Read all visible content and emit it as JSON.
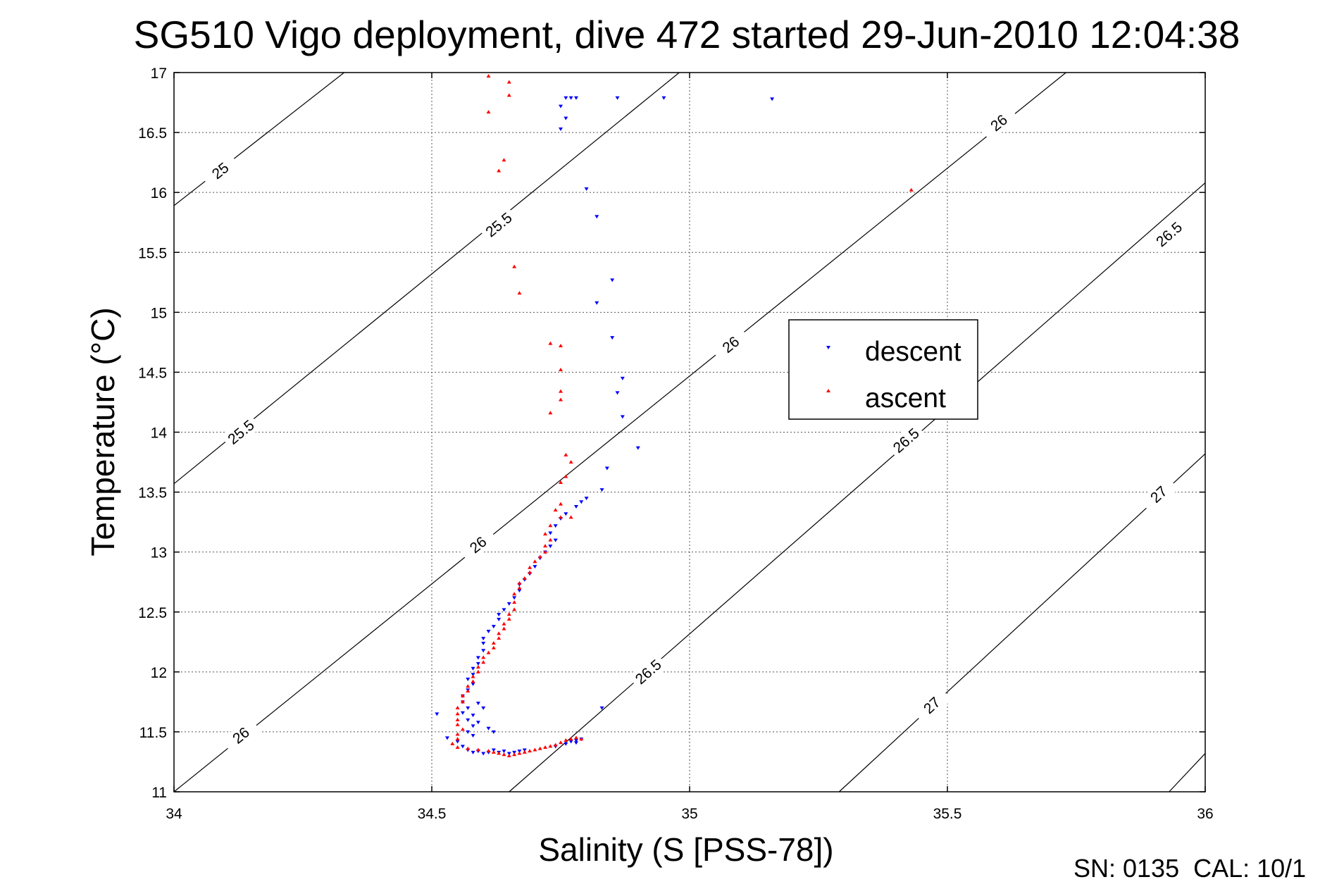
{
  "chart_data": {
    "type": "scatter",
    "title": "SG510 Vigo deployment, dive 472 started 29-Jun-2010 12:04:38",
    "xlabel": "Salinity (S [PSS-78])",
    "ylabel": "Temperature (°C)",
    "xlim": [
      34,
      36
    ],
    "ylim": [
      11,
      17
    ],
    "xticks": [
      "34",
      "34.5",
      "35",
      "35.5",
      "36"
    ],
    "yticks": [
      "11",
      "11.5",
      "12",
      "12.5",
      "13",
      "13.5",
      "14",
      "14.5",
      "15",
      "15.5",
      "16",
      "16.5",
      "17"
    ],
    "grid": true,
    "legend_position": "upper-right-center",
    "footer": "SN: 0135  CAL: 10/1",
    "series": [
      {
        "name": "descent",
        "color": "#0000ff",
        "marker": "triangle-down",
        "points": [
          [
            34.76,
            16.79
          ],
          [
            34.77,
            16.79
          ],
          [
            34.78,
            16.79
          ],
          [
            34.86,
            16.79
          ],
          [
            34.95,
            16.79
          ],
          [
            35.16,
            16.78
          ],
          [
            34.75,
            16.72
          ],
          [
            34.76,
            16.62
          ],
          [
            34.75,
            16.53
          ],
          [
            34.8,
            16.03
          ],
          [
            34.82,
            15.8
          ],
          [
            34.85,
            15.27
          ],
          [
            34.82,
            15.08
          ],
          [
            34.85,
            14.79
          ],
          [
            34.87,
            14.45
          ],
          [
            34.86,
            14.33
          ],
          [
            34.87,
            14.13
          ],
          [
            34.9,
            13.87
          ],
          [
            34.84,
            13.7
          ],
          [
            34.83,
            13.52
          ],
          [
            34.8,
            13.45
          ],
          [
            34.79,
            13.42
          ],
          [
            34.78,
            13.38
          ],
          [
            34.76,
            13.32
          ],
          [
            34.75,
            13.28
          ],
          [
            34.74,
            13.22
          ],
          [
            34.73,
            13.16
          ],
          [
            34.74,
            13.1
          ],
          [
            34.73,
            13.05
          ],
          [
            34.72,
            13.0
          ],
          [
            34.71,
            12.95
          ],
          [
            34.7,
            12.88
          ],
          [
            34.69,
            12.82
          ],
          [
            34.68,
            12.77
          ],
          [
            34.67,
            12.73
          ],
          [
            34.67,
            12.68
          ],
          [
            34.66,
            12.62
          ],
          [
            34.65,
            12.57
          ],
          [
            34.64,
            12.52
          ],
          [
            34.63,
            12.48
          ],
          [
            34.63,
            12.44
          ],
          [
            34.62,
            12.38
          ],
          [
            34.61,
            12.34
          ],
          [
            34.6,
            12.28
          ],
          [
            34.6,
            12.24
          ],
          [
            34.6,
            12.18
          ],
          [
            34.59,
            12.12
          ],
          [
            34.59,
            12.07
          ],
          [
            34.58,
            12.03
          ],
          [
            34.58,
            11.98
          ],
          [
            34.57,
            11.94
          ],
          [
            34.58,
            11.9
          ],
          [
            34.57,
            11.85
          ],
          [
            34.56,
            11.8
          ],
          [
            34.56,
            11.75
          ],
          [
            34.57,
            11.7
          ],
          [
            34.56,
            11.66
          ],
          [
            34.57,
            11.6
          ],
          [
            34.58,
            11.55
          ],
          [
            34.57,
            11.5
          ],
          [
            34.58,
            11.47
          ],
          [
            34.59,
            11.74
          ],
          [
            34.6,
            11.7
          ],
          [
            34.58,
            11.64
          ],
          [
            34.59,
            11.58
          ],
          [
            34.61,
            11.53
          ],
          [
            34.62,
            11.5
          ],
          [
            34.51,
            11.65
          ],
          [
            34.53,
            11.45
          ],
          [
            34.55,
            11.42
          ],
          [
            34.56,
            11.38
          ],
          [
            34.57,
            11.35
          ],
          [
            34.58,
            11.33
          ],
          [
            34.59,
            11.34
          ],
          [
            34.6,
            11.32
          ],
          [
            34.61,
            11.33
          ],
          [
            34.62,
            11.35
          ],
          [
            34.63,
            11.33
          ],
          [
            34.64,
            11.34
          ],
          [
            34.65,
            11.32
          ],
          [
            34.66,
            11.33
          ],
          [
            34.67,
            11.34
          ],
          [
            34.68,
            11.35
          ],
          [
            34.74,
            11.38
          ],
          [
            34.76,
            11.4
          ],
          [
            34.77,
            11.42
          ],
          [
            34.78,
            11.43
          ],
          [
            34.79,
            11.44
          ],
          [
            34.78,
            11.41
          ],
          [
            34.83,
            11.7
          ]
        ]
      },
      {
        "name": "ascent",
        "color": "#ff0000",
        "marker": "triangle-up",
        "points": [
          [
            34.61,
            16.97
          ],
          [
            34.65,
            16.92
          ],
          [
            34.61,
            16.67
          ],
          [
            34.65,
            16.81
          ],
          [
            34.64,
            16.27
          ],
          [
            34.63,
            16.18
          ],
          [
            34.66,
            15.38
          ],
          [
            34.67,
            15.16
          ],
          [
            34.73,
            14.74
          ],
          [
            34.75,
            14.72
          ],
          [
            34.75,
            14.52
          ],
          [
            34.75,
            14.34
          ],
          [
            34.75,
            14.27
          ],
          [
            34.73,
            14.16
          ],
          [
            34.76,
            13.81
          ],
          [
            34.77,
            13.75
          ],
          [
            34.76,
            13.63
          ],
          [
            34.75,
            13.58
          ],
          [
            34.75,
            13.4
          ],
          [
            34.74,
            13.35
          ],
          [
            34.75,
            13.29
          ],
          [
            34.77,
            13.29
          ],
          [
            34.73,
            13.22
          ],
          [
            34.72,
            13.15
          ],
          [
            34.73,
            13.1
          ],
          [
            34.72,
            13.05
          ],
          [
            34.72,
            13.0
          ],
          [
            34.71,
            12.96
          ],
          [
            34.7,
            12.92
          ],
          [
            34.69,
            12.87
          ],
          [
            34.69,
            12.83
          ],
          [
            34.68,
            12.78
          ],
          [
            34.67,
            12.74
          ],
          [
            34.67,
            12.7
          ],
          [
            34.66,
            12.65
          ],
          [
            34.66,
            12.58
          ],
          [
            34.66,
            12.52
          ],
          [
            34.65,
            12.48
          ],
          [
            34.65,
            12.44
          ],
          [
            34.64,
            12.4
          ],
          [
            34.64,
            12.36
          ],
          [
            34.63,
            12.32
          ],
          [
            34.63,
            12.28
          ],
          [
            34.62,
            12.24
          ],
          [
            34.62,
            12.2
          ],
          [
            34.61,
            12.16
          ],
          [
            34.6,
            12.12
          ],
          [
            34.6,
            12.08
          ],
          [
            34.59,
            12.04
          ],
          [
            34.59,
            12.0
          ],
          [
            34.58,
            11.96
          ],
          [
            34.58,
            11.92
          ],
          [
            34.57,
            11.88
          ],
          [
            34.57,
            11.84
          ],
          [
            34.56,
            11.8
          ],
          [
            34.56,
            11.75
          ],
          [
            34.55,
            11.7
          ],
          [
            34.55,
            11.65
          ],
          [
            34.55,
            11.6
          ],
          [
            34.55,
            11.56
          ],
          [
            34.56,
            11.52
          ],
          [
            34.55,
            11.48
          ],
          [
            34.55,
            11.44
          ],
          [
            34.54,
            11.4
          ],
          [
            34.55,
            11.37
          ],
          [
            34.57,
            11.36
          ],
          [
            34.59,
            11.35
          ],
          [
            34.61,
            11.34
          ],
          [
            34.62,
            11.33
          ],
          [
            34.63,
            11.32
          ],
          [
            34.64,
            11.31
          ],
          [
            34.65,
            11.3
          ],
          [
            34.66,
            11.31
          ],
          [
            34.67,
            11.32
          ],
          [
            34.68,
            11.33
          ],
          [
            34.69,
            11.34
          ],
          [
            34.7,
            11.35
          ],
          [
            34.71,
            11.36
          ],
          [
            34.72,
            11.37
          ],
          [
            34.73,
            11.38
          ],
          [
            34.74,
            11.39
          ],
          [
            34.75,
            11.41
          ],
          [
            34.76,
            11.43
          ],
          [
            34.77,
            11.44
          ],
          [
            34.78,
            11.45
          ],
          [
            34.79,
            11.44
          ],
          [
            35.43,
            16.02
          ]
        ]
      }
    ],
    "contours": [
      {
        "label": "25",
        "points": [
          [
            34.0,
            15.89
          ],
          [
            34.33,
            17.0
          ]
        ],
        "label_at": [
          34.09,
          16.18
        ]
      },
      {
        "label": "25.5",
        "points": [
          [
            34.0,
            13.57
          ],
          [
            34.98,
            17.0
          ]
        ],
        "label_at": [
          34.63,
          15.73
        ]
      },
      {
        "label": "25.5",
        "points": [
          [
            34.0,
            13.57
          ],
          [
            34.98,
            17.0
          ]
        ],
        "label_at": [
          34.13,
          14.0
        ]
      },
      {
        "label": "26",
        "points": [
          [
            34.0,
            11.0
          ],
          [
            35.73,
            17.0
          ]
        ],
        "label_at": [
          34.13,
          11.47
        ]
      },
      {
        "label": "26",
        "points": [
          [
            34.0,
            11.0
          ],
          [
            35.73,
            17.0
          ]
        ],
        "label_at": [
          34.59,
          13.06
        ]
      },
      {
        "label": "26",
        "points": [
          [
            34.0,
            11.0
          ],
          [
            35.73,
            17.0
          ]
        ],
        "label_at": [
          35.08,
          14.73
        ]
      },
      {
        "label": "26",
        "points": [
          [
            34.0,
            11.0
          ],
          [
            35.73,
            17.0
          ]
        ],
        "label_at": [
          35.6,
          16.58
        ]
      },
      {
        "label": "26.5",
        "points": [
          [
            34.65,
            11.0
          ],
          [
            36.0,
            16.08
          ]
        ],
        "label_at": [
          34.92,
          12.0
        ]
      },
      {
        "label": "26.5",
        "points": [
          [
            34.65,
            11.0
          ],
          [
            36.0,
            16.08
          ]
        ],
        "label_at": [
          35.42,
          13.93
        ]
      },
      {
        "label": "26.5",
        "points": [
          [
            34.65,
            11.0
          ],
          [
            36.0,
            16.08
          ]
        ],
        "label_at": [
          35.93,
          15.65
        ]
      },
      {
        "label": "27",
        "points": [
          [
            35.29,
            11.0
          ],
          [
            36.0,
            13.82
          ]
        ],
        "label_at": [
          35.47,
          11.72
        ]
      },
      {
        "label": "27",
        "points": [
          [
            35.29,
            11.0
          ],
          [
            36.0,
            13.82
          ]
        ],
        "label_at": [
          35.91,
          13.48
        ]
      },
      {
        "label": "",
        "points": [
          [
            35.93,
            11.0
          ],
          [
            36.0,
            11.32
          ]
        ],
        "label_at": null
      }
    ]
  }
}
